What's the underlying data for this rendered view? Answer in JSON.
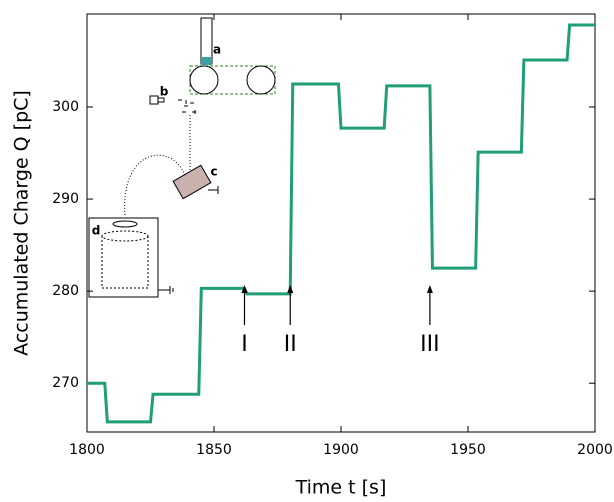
{
  "chart_data": {
    "type": "line",
    "xlabel": "Time t [s]",
    "ylabel": "Accumulated Charge Q [pC]",
    "x": [
      1800,
      1807,
      1808,
      1825,
      1826,
      1844,
      1845,
      1862,
      1863,
      1880,
      1881,
      1899,
      1900,
      1917,
      1918,
      1935,
      1936,
      1953,
      1954,
      1971,
      1972,
      1989,
      1990,
      2000
    ],
    "series": [
      {
        "color": "#1f9e78",
        "values": [
          270,
          270,
          265.8,
          265.8,
          268.8,
          268.8,
          280.3,
          280.3,
          279.7,
          279.7,
          302.5,
          302.5,
          297.7,
          297.7,
          302.3,
          302.3,
          282.5,
          282.5,
          295.1,
          295.1,
          305.1,
          305.1,
          308.9,
          308.9
        ]
      }
    ],
    "xlim": [
      1800,
      2000
    ],
    "ylim": [
      264.7,
      310.1
    ],
    "xticks": [
      1800,
      1850,
      1900,
      1950,
      2000
    ],
    "yticks": [
      270,
      280,
      290,
      300
    ],
    "annotations": [
      {
        "text": "I",
        "x": 1862
      },
      {
        "text": "II",
        "x": 1880
      },
      {
        "text": "III",
        "x": 1935
      }
    ],
    "inset_labels": [
      "a",
      "b",
      "c",
      "d"
    ]
  }
}
